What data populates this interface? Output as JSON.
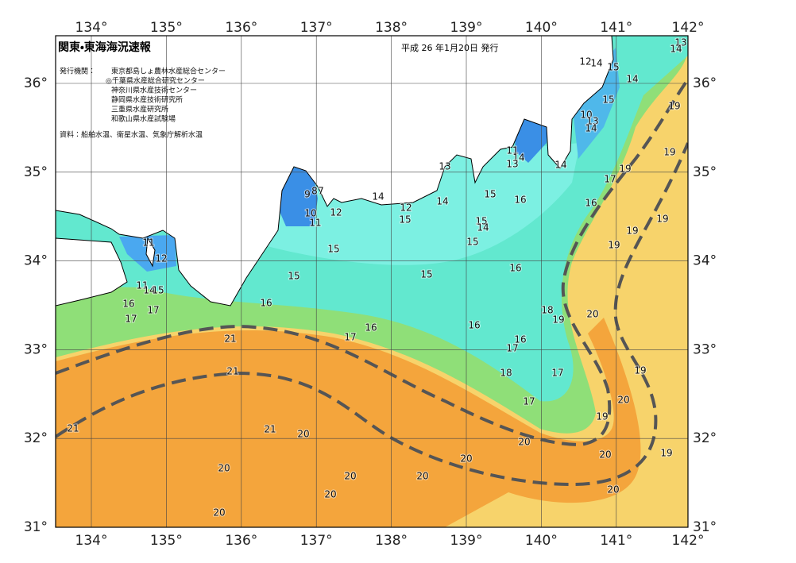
{
  "header": {
    "title": "関東・東海海況速報",
    "issued": "平成 26 年1月20日 発行"
  },
  "issuers": {
    "label": "発行機関：",
    "names": [
      "東京都島しょ農林水産総合センター",
      "◎千葉県水産総合研究センター",
      "神奈川県水産技術センター",
      "静岡県水産技術研究所",
      "三重県水産研究所",
      "和歌山県水産試験場"
    ]
  },
  "source": "資料：船舶水温、衛星水温、気象庁解析水温",
  "lon_ticks": [
    {
      "value": 134,
      "label": "134°"
    },
    {
      "value": 135,
      "label": "135°"
    },
    {
      "value": 136,
      "label": "136°"
    },
    {
      "value": 137,
      "label": "137°"
    },
    {
      "value": 138,
      "label": "138°"
    },
    {
      "value": 139,
      "label": "139°"
    },
    {
      "value": 140,
      "label": "140°"
    },
    {
      "value": 141,
      "label": "141°"
    },
    {
      "value": 142,
      "label": "142°"
    }
  ],
  "lat_ticks": [
    {
      "value": 36,
      "label": "36°"
    },
    {
      "value": 35,
      "label": "35°"
    },
    {
      "value": 34,
      "label": "34°"
    },
    {
      "value": 33,
      "label": "33°"
    },
    {
      "value": 32,
      "label": "32°"
    },
    {
      "value": 31,
      "label": "31°"
    }
  ],
  "contour_labels": [
    13,
    14,
    12,
    14,
    15,
    14,
    15,
    19,
    10,
    13,
    14,
    19,
    11,
    14,
    13,
    14,
    13,
    19,
    17,
    14,
    12,
    15,
    14,
    15,
    16,
    16,
    9,
    8,
    7,
    10,
    11,
    12,
    19,
    19,
    15,
    14,
    15,
    19,
    11,
    12,
    15,
    15,
    15,
    16,
    11,
    14,
    15,
    16,
    17,
    17,
    16,
    18,
    19,
    20,
    16,
    17,
    16,
    21,
    16,
    17,
    21,
    18,
    17,
    19,
    20,
    17,
    19,
    21,
    21,
    20,
    20,
    20,
    19,
    20,
    20,
    20,
    20,
    20,
    20,
    20
  ]
}
